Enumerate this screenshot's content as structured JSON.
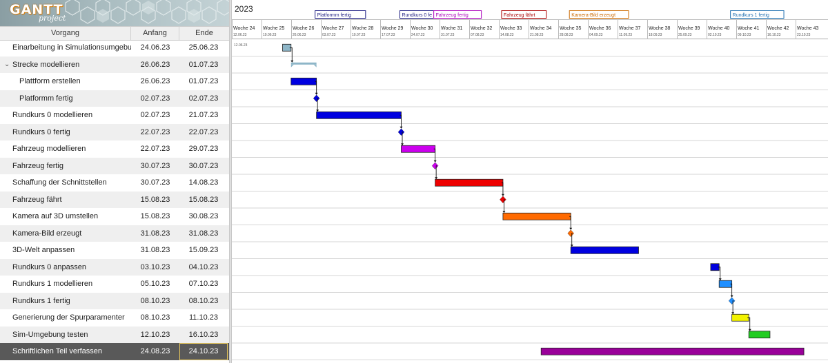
{
  "app": {
    "logo_text": "GANTT",
    "logo_subtext": "project"
  },
  "table": {
    "columns": {
      "name": "Vorgang",
      "start": "Anfang",
      "end": "Ende"
    },
    "tasks": [
      {
        "name": "Einarbeitung in Simulationsumgebung",
        "start": "24.06.23",
        "end": "25.06.23",
        "level": 0,
        "type": "task",
        "color": "#8eb6c8",
        "startDay": 0,
        "endDay": 2
      },
      {
        "name": "Strecke modellieren",
        "start": "26.06.23",
        "end": "01.07.23",
        "level": 0,
        "type": "summary",
        "expanded": true,
        "color": "#8eb6c8",
        "startDay": 2,
        "endDay": 8
      },
      {
        "name": "Plattform erstellen",
        "start": "26.06.23",
        "end": "01.07.23",
        "level": 1,
        "type": "task",
        "color": "#0000e0",
        "startDay": 2,
        "endDay": 8
      },
      {
        "name": "Platformm fertig",
        "start": "02.07.23",
        "end": "02.07.23",
        "level": 1,
        "type": "milestone",
        "color": "#0000e0",
        "startDay": 8
      },
      {
        "name": "Rundkurs 0 modellieren",
        "start": "02.07.23",
        "end": "21.07.23",
        "level": 0,
        "type": "task",
        "color": "#0000e0",
        "startDay": 8,
        "endDay": 28
      },
      {
        "name": "Rundkurs 0 fertig",
        "start": "22.07.23",
        "end": "22.07.23",
        "level": 0,
        "type": "milestone",
        "color": "#0000e0",
        "startDay": 28
      },
      {
        "name": "Fahrzeug modellieren",
        "start": "22.07.23",
        "end": "29.07.23",
        "level": 0,
        "type": "task",
        "color": "#cc00ee",
        "startDay": 28,
        "endDay": 36
      },
      {
        "name": "Fahrzeug fertig",
        "start": "30.07.23",
        "end": "30.07.23",
        "level": 0,
        "type": "milestone",
        "color": "#cc00ee",
        "startDay": 36
      },
      {
        "name": "Schaffung der Schnittstellen",
        "start": "30.07.23",
        "end": "14.08.23",
        "level": 0,
        "type": "task",
        "color": "#ee0000",
        "startDay": 36,
        "endDay": 52
      },
      {
        "name": "Fahrzeug fährt",
        "start": "15.08.23",
        "end": "15.08.23",
        "level": 0,
        "type": "milestone",
        "color": "#ee0000",
        "startDay": 52
      },
      {
        "name": "Kamera auf 3D umstellen",
        "start": "15.08.23",
        "end": "30.08.23",
        "level": 0,
        "type": "task",
        "color": "#ff6a00",
        "startDay": 52,
        "endDay": 68
      },
      {
        "name": "Kamera-Bild erzeugt",
        "start": "31.08.23",
        "end": "31.08.23",
        "level": 0,
        "type": "milestone",
        "color": "#ff6a00",
        "startDay": 68
      },
      {
        "name": "3D-Welt anpassen",
        "start": "31.08.23",
        "end": "15.09.23",
        "level": 0,
        "type": "task",
        "color": "#0000e0",
        "startDay": 68,
        "endDay": 84
      },
      {
        "name": "Rundkurs 0 anpassen",
        "start": "03.10.23",
        "end": "04.10.23",
        "level": 0,
        "type": "task",
        "color": "#0000e0",
        "startDay": 101,
        "endDay": 103
      },
      {
        "name": "Rundkurs 1 modellieren",
        "start": "05.10.23",
        "end": "07.10.23",
        "level": 0,
        "type": "task",
        "color": "#1f8fff",
        "startDay": 103,
        "endDay": 106
      },
      {
        "name": "Rundkurs 1 fertig",
        "start": "08.10.23",
        "end": "08.10.23",
        "level": 0,
        "type": "milestone",
        "color": "#1f8fff",
        "startDay": 106
      },
      {
        "name": "Generierung der Spurparamenter",
        "start": "08.10.23",
        "end": "11.10.23",
        "level": 0,
        "type": "task",
        "color": "#f2f200",
        "startDay": 106,
        "endDay": 110
      },
      {
        "name": "Sim-Umgebung testen",
        "start": "12.10.23",
        "end": "16.10.23",
        "level": 0,
        "type": "task",
        "color": "#22cc22",
        "startDay": 110,
        "endDay": 115
      },
      {
        "name": "Schriftlichen Teil verfassen",
        "start": "24.08.23",
        "end": "24.10.23",
        "level": 0,
        "type": "task",
        "color": "#990099",
        "startDay": 61,
        "endDay": 123,
        "selected": true
      }
    ]
  },
  "timeline": {
    "year": "2023",
    "today_marker": "12.06.23",
    "weeks": [
      {
        "label": "Woche 24",
        "date": "12.06.23"
      },
      {
        "label": "Woche 25",
        "date": "19.06.23"
      },
      {
        "label": "Woche 26",
        "date": "26.06.23"
      },
      {
        "label": "Woche 27",
        "date": "03.07.23"
      },
      {
        "label": "Woche 28",
        "date": "10.07.23"
      },
      {
        "label": "Woche 29",
        "date": "17.07.23"
      },
      {
        "label": "Woche 30",
        "date": "24.07.23"
      },
      {
        "label": "Woche 31",
        "date": "31.07.23"
      },
      {
        "label": "Woche 32",
        "date": "07.08.23"
      },
      {
        "label": "Woche 33",
        "date": "14.08.23"
      },
      {
        "label": "Woche 34",
        "date": "21.08.23"
      },
      {
        "label": "Woche 35",
        "date": "28.08.23"
      },
      {
        "label": "Woche 36",
        "date": "04.09.23"
      },
      {
        "label": "Woche 37",
        "date": "11.09.23"
      },
      {
        "label": "Woche 38",
        "date": "18.09.23"
      },
      {
        "label": "Woche 39",
        "date": "25.09.23"
      },
      {
        "label": "Woche 40",
        "date": "02.10.23"
      },
      {
        "label": "Woche 41",
        "date": "09.10.23"
      },
      {
        "label": "Woche 42",
        "date": "16.10.23"
      },
      {
        "label": "Woche 43",
        "date": "23.10.23"
      }
    ],
    "milestone_flags": [
      {
        "label": "Platformm fertig",
        "color": "#1a1a80",
        "day": 8
      },
      {
        "label": "Rundkurs 0 fe",
        "color": "#1a1a80",
        "day": 28
      },
      {
        "label": "Fahrzeug fertig",
        "color": "#aa00bb",
        "day": 36
      },
      {
        "label": "Fahrzeug fährt",
        "color": "#aa0000",
        "day": 52
      },
      {
        "label": "Kamera-Bild erzeugt",
        "color": "#cc6a00",
        "day": 68
      },
      {
        "label": "Rundkurs 1 fertig",
        "color": "#1f6fb0",
        "day": 106
      }
    ],
    "dependencies": [
      [
        0,
        1
      ],
      [
        2,
        3
      ],
      [
        3,
        4
      ],
      [
        4,
        5
      ],
      [
        5,
        6
      ],
      [
        6,
        7
      ],
      [
        7,
        8
      ],
      [
        8,
        9
      ],
      [
        9,
        10
      ],
      [
        10,
        11
      ],
      [
        11,
        12
      ],
      [
        13,
        14
      ],
      [
        14,
        15
      ],
      [
        15,
        16
      ],
      [
        16,
        17
      ]
    ]
  }
}
